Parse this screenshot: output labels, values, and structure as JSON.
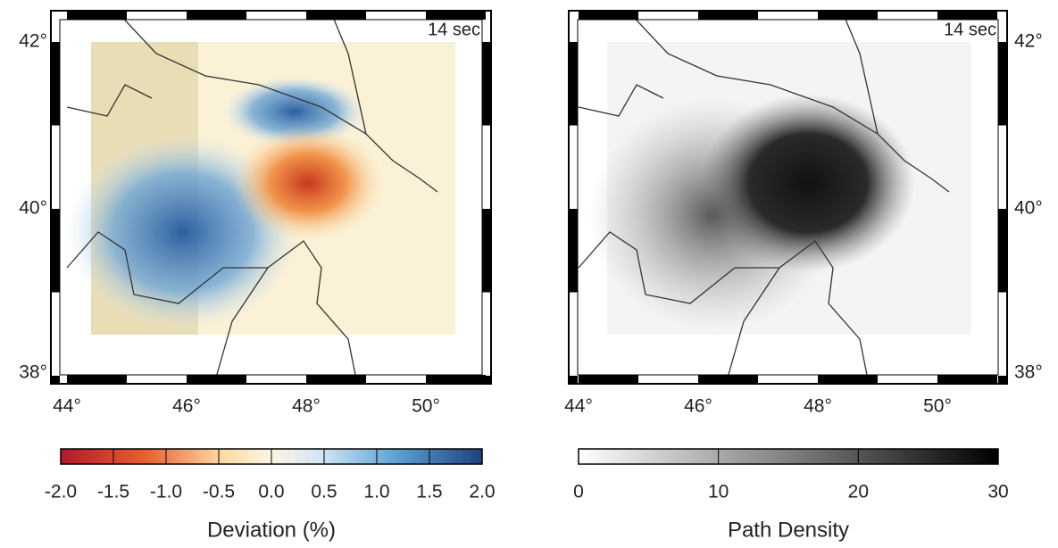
{
  "panels": [
    {
      "period": "14 sec",
      "lon_labels": [
        "44°",
        "46°",
        "48°",
        "50°"
      ],
      "lat_labels": [
        "42°",
        "40°",
        "38°"
      ]
    },
    {
      "period": "14 sec",
      "lon_labels": [
        "44°",
        "46°",
        "48°",
        "50°"
      ],
      "lat_labels": [
        "42°",
        "40°",
        "38°"
      ]
    }
  ],
  "colorbars": [
    {
      "title": "Deviation (%)",
      "tick_labels": [
        "-2.0",
        "-1.5",
        "-1.0",
        "-0.5",
        "0.0",
        "0.5",
        "1.0",
        "1.5",
        "2.0"
      ]
    },
    {
      "title": "Path Density",
      "tick_labels": [
        "0",
        "10",
        "20",
        "30"
      ]
    }
  ]
}
